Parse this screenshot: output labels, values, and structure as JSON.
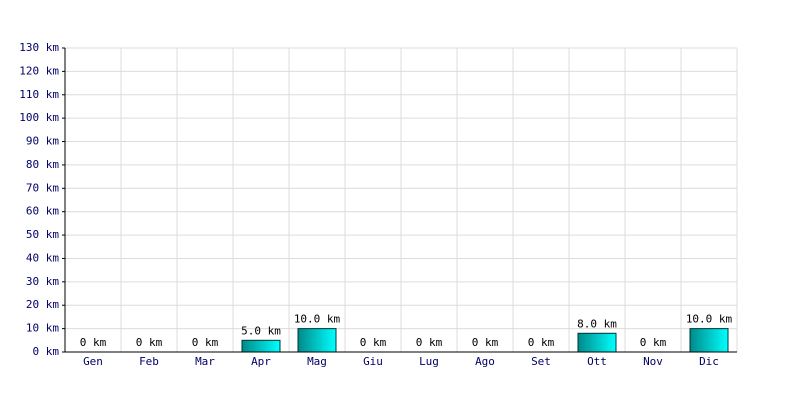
{
  "chart_data": {
    "type": "bar",
    "categories": [
      "Gen",
      "Feb",
      "Mar",
      "Apr",
      "Mag",
      "Giu",
      "Lug",
      "Ago",
      "Set",
      "Ott",
      "Nov",
      "Dic"
    ],
    "values": [
      0,
      0,
      0,
      5,
      10,
      0,
      0,
      0,
      0,
      8,
      0,
      10
    ],
    "value_labels": [
      "0 km",
      "0 km",
      "0 km",
      "5.0 km",
      "10.0 km",
      "0 km",
      "0 km",
      "0 km",
      "0 km",
      "8.0 km",
      "0 km",
      "10.0 km"
    ],
    "color": "#00e0e0",
    "ylim": [
      0,
      130
    ],
    "yticks": [
      {
        "value": 0,
        "label": "0 km"
      },
      {
        "value": 10,
        "label": "10 km"
      },
      {
        "value": 20,
        "label": "20 km"
      },
      {
        "value": 30,
        "label": "30 km"
      },
      {
        "value": 40,
        "label": "40 km"
      },
      {
        "value": 50,
        "label": "50 km"
      },
      {
        "value": 60,
        "label": "60 km"
      },
      {
        "value": 70,
        "label": "70 km"
      },
      {
        "value": 80,
        "label": "80 km"
      },
      {
        "value": 90,
        "label": "90 km"
      },
      {
        "value": 100,
        "label": "100 km"
      },
      {
        "value": 110,
        "label": "110 km"
      },
      {
        "value": 120,
        "label": "120 km"
      },
      {
        "value": 130,
        "label": "130 km"
      }
    ],
    "grid": true
  }
}
